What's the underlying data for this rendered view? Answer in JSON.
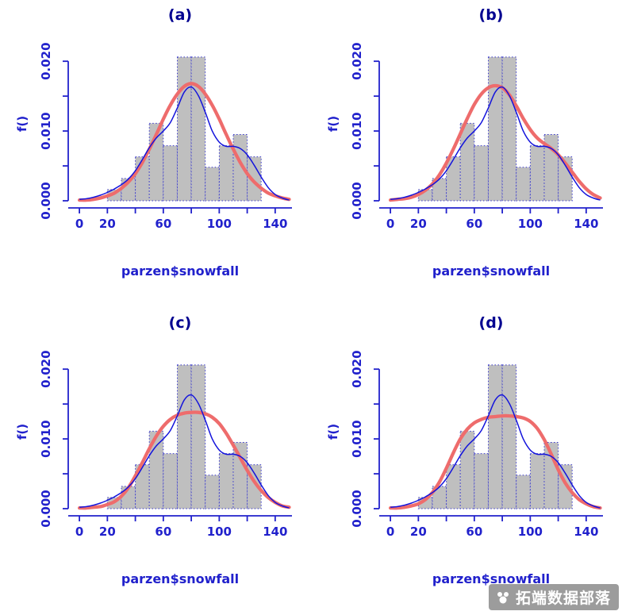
{
  "watermark": {
    "text": "拓端数据部落"
  },
  "colors": {
    "background": "#ffffff",
    "axis_blue": "#2121cc",
    "title_navy": "#000090",
    "bar_fill": "#bfbfbf",
    "bar_border": "#3a3acd",
    "density_blue": "#1414dc",
    "parzen_red": "#ee6c6c",
    "watermark_text": "#ffffff"
  },
  "chart_data": {
    "type": "bar",
    "subtype": "histogram-with-density-curves",
    "layout": "2x2-grid",
    "shared": {
      "xlabel": "parzen$snowfall",
      "ylabel": "f()",
      "xlim": [
        -8,
        152
      ],
      "ylim": [
        0,
        0.0215
      ],
      "grid": "off",
      "x_ticks": [
        0,
        20,
        40,
        60,
        80,
        100,
        120,
        140
      ],
      "x_tick_labels": [
        "0",
        "20",
        "",
        "60",
        "",
        "100",
        "",
        "140"
      ],
      "y_ticks": [
        0,
        0.005,
        0.01,
        0.015,
        0.02
      ],
      "y_tick_labels": [
        "0.000",
        "",
        "0.010",
        "",
        "0.020"
      ],
      "histogram": {
        "breaks": [
          20,
          30,
          40,
          50,
          60,
          70,
          80,
          90,
          100,
          110,
          120,
          130
        ],
        "densities": [
          0.0016,
          0.0032,
          0.0063,
          0.0111,
          0.0079,
          0.0206,
          0.0206,
          0.0048,
          0.0079,
          0.0095,
          0.0063
        ]
      },
      "x_grid": [
        0,
        5,
        10,
        15,
        20,
        25,
        30,
        35,
        40,
        45,
        50,
        55,
        60,
        65,
        70,
        75,
        80,
        85,
        90,
        95,
        100,
        105,
        110,
        115,
        120,
        125,
        130,
        135,
        140,
        145,
        150
      ],
      "kde_blue": {
        "name": "kernel-density-estimate-blue",
        "y": [
          0.0002,
          0.0003,
          0.0005,
          0.0008,
          0.0012,
          0.0017,
          0.0023,
          0.0031,
          0.0043,
          0.0059,
          0.0076,
          0.009,
          0.01,
          0.0112,
          0.0133,
          0.0156,
          0.0163,
          0.0151,
          0.0127,
          0.01,
          0.0084,
          0.0078,
          0.0078,
          0.0075,
          0.0066,
          0.0051,
          0.0034,
          0.0019,
          0.0009,
          0.0004,
          0.0001
        ]
      }
    },
    "panels": [
      {
        "title": "(a)",
        "red_curve": {
          "name": "parzen-estimate-red",
          "y": [
            0.0001,
            0.0001,
            0.0002,
            0.0004,
            0.0007,
            0.0011,
            0.0018,
            0.0027,
            0.0039,
            0.0055,
            0.0074,
            0.0095,
            0.0117,
            0.0137,
            0.0153,
            0.0164,
            0.0168,
            0.0164,
            0.0153,
            0.0137,
            0.0117,
            0.0095,
            0.0074,
            0.0055,
            0.0039,
            0.0027,
            0.0018,
            0.0011,
            0.0007,
            0.0004,
            0.0002
          ]
        }
      },
      {
        "title": "(b)",
        "red_curve": {
          "name": "parzen-estimate-red",
          "y": [
            0.0001,
            0.0002,
            0.0003,
            0.0005,
            0.0009,
            0.0015,
            0.0024,
            0.0037,
            0.0054,
            0.0074,
            0.0096,
            0.0118,
            0.0138,
            0.0153,
            0.0162,
            0.0165,
            0.0162,
            0.0152,
            0.0136,
            0.0118,
            0.0102,
            0.009,
            0.0082,
            0.0075,
            0.0066,
            0.0054,
            0.0041,
            0.0028,
            0.0017,
            0.0009,
            0.0004
          ]
        }
      },
      {
        "title": "(c)",
        "red_curve": {
          "name": "parzen-estimate-red",
          "y": [
            0.0001,
            0.0001,
            0.0002,
            0.0003,
            0.0006,
            0.001,
            0.0018,
            0.003,
            0.0047,
            0.0066,
            0.0086,
            0.0104,
            0.0118,
            0.0128,
            0.0134,
            0.0137,
            0.0138,
            0.0138,
            0.0136,
            0.0131,
            0.0122,
            0.0108,
            0.0091,
            0.0073,
            0.0055,
            0.0039,
            0.0026,
            0.0016,
            0.0009,
            0.0004,
            0.0002
          ]
        }
      },
      {
        "title": "(d)",
        "red_curve": {
          "name": "parzen-estimate-red",
          "y": [
            0.0001,
            0.0001,
            0.0002,
            0.0004,
            0.0007,
            0.0013,
            0.0023,
            0.0038,
            0.0058,
            0.008,
            0.01,
            0.0114,
            0.0123,
            0.0128,
            0.0131,
            0.0132,
            0.0133,
            0.0133,
            0.0132,
            0.013,
            0.0125,
            0.0115,
            0.0099,
            0.0078,
            0.0056,
            0.0037,
            0.0023,
            0.0013,
            0.0007,
            0.0003,
            0.0001
          ]
        }
      }
    ]
  }
}
